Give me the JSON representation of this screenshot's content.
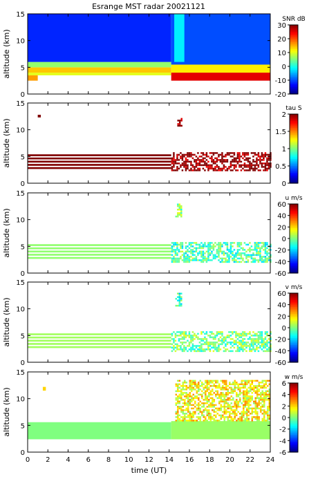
{
  "figure": {
    "title": "Esrange MST radar 20021121"
  },
  "chart_data": [
    {
      "type": "heatmap",
      "id": "snr",
      "ylabel": "altitude (km)",
      "ylim": [
        0,
        15
      ],
      "yticks": [
        0,
        5,
        10,
        15
      ],
      "xlim": [
        0,
        24
      ],
      "xticks": [
        0,
        2,
        4,
        6,
        8,
        10,
        12,
        14,
        16,
        18,
        20,
        22,
        24
      ],
      "show_xtick_labels": false,
      "colorbar": {
        "label": "SNR dB",
        "range": [
          -20,
          30
        ],
        "ticks": [
          -20,
          -10,
          0,
          10,
          20,
          30
        ]
      },
      "fields": [
        {
          "t": [
            0,
            1
          ],
          "alt": [
            2.5,
            3.5
          ],
          "value": 16
        },
        {
          "t": [
            0,
            14.2
          ],
          "alt": [
            3.5,
            4.0
          ],
          "value": 10
        },
        {
          "t": [
            0,
            14.2
          ],
          "alt": [
            4.0,
            5.0
          ],
          "value": 14
        },
        {
          "t": [
            0,
            14.2
          ],
          "alt": [
            5.0,
            6.0
          ],
          "value": 6
        },
        {
          "t": [
            0,
            14.2
          ],
          "alt": [
            6.0,
            15
          ],
          "value": -12
        },
        {
          "t": [
            14.2,
            24
          ],
          "alt": [
            2.5,
            4.0
          ],
          "value": 25
        },
        {
          "t": [
            14.2,
            24
          ],
          "alt": [
            4.0,
            5.5
          ],
          "value": 12
        },
        {
          "t": [
            14.2,
            24
          ],
          "alt": [
            5.5,
            15
          ],
          "value": -10
        },
        {
          "t": [
            14.5,
            15.5
          ],
          "alt": [
            6.0,
            15
          ],
          "value": -2
        }
      ]
    },
    {
      "type": "heatmap",
      "id": "tau",
      "ylabel": "altitude (km)",
      "ylim": [
        0,
        15
      ],
      "yticks": [
        0,
        5,
        10,
        15
      ],
      "xlim": [
        0,
        24
      ],
      "xticks": [
        0,
        2,
        4,
        6,
        8,
        10,
        12,
        14,
        16,
        18,
        20,
        22,
        24
      ],
      "show_xtick_labels": false,
      "colorbar": {
        "label": "tau S",
        "range": [
          0,
          2
        ],
        "ticks": [
          0,
          0.5,
          1,
          1.5,
          2
        ]
      },
      "fields": [
        {
          "t": [
            0,
            14.2
          ],
          "alt": [
            2.4,
            5.4
          ],
          "value": 2,
          "striped": true
        },
        {
          "t": [
            14.2,
            24
          ],
          "alt": [
            2.4,
            5.8
          ],
          "value": 2,
          "sparse": true
        },
        {
          "t": [
            1.0,
            1.3
          ],
          "alt": [
            12.3,
            12.8
          ],
          "value": 2
        },
        {
          "t": [
            14.8,
            15.3
          ],
          "alt": [
            10.8,
            12.2
          ],
          "value": 2,
          "sparse": true
        }
      ]
    },
    {
      "type": "heatmap",
      "id": "u",
      "ylabel": "altitude (km)",
      "ylim": [
        0,
        15
      ],
      "yticks": [
        0,
        5,
        10,
        15
      ],
      "xlim": [
        0,
        24
      ],
      "xticks": [
        0,
        2,
        4,
        6,
        8,
        10,
        12,
        14,
        16,
        18,
        20,
        22,
        24
      ],
      "show_xtick_labels": false,
      "colorbar": {
        "label": "u m/s",
        "range": [
          -60,
          60
        ],
        "ticks": [
          -60,
          -40,
          -20,
          0,
          20,
          40,
          60
        ]
      },
      "fields": [
        {
          "t": [
            0,
            14.2
          ],
          "alt": [
            2.4,
            5.4
          ],
          "value": 2,
          "striped": true
        },
        {
          "t": [
            14.2,
            24
          ],
          "alt": [
            2.2,
            5.8
          ],
          "value": -6,
          "sparse": true
        },
        {
          "t": [
            14.6,
            15.2
          ],
          "alt": [
            10.5,
            13.0
          ],
          "value": 0,
          "sparse": true
        }
      ]
    },
    {
      "type": "heatmap",
      "id": "v",
      "ylabel": "altitude (km)",
      "ylim": [
        0,
        15
      ],
      "yticks": [
        0,
        5,
        10,
        15
      ],
      "xlim": [
        0,
        24
      ],
      "xticks": [
        0,
        2,
        4,
        6,
        8,
        10,
        12,
        14,
        16,
        18,
        20,
        22,
        24
      ],
      "show_xtick_labels": false,
      "colorbar": {
        "label": "v m/s",
        "range": [
          -60,
          60
        ],
        "ticks": [
          -60,
          -40,
          -20,
          0,
          20,
          40,
          60
        ]
      },
      "fields": [
        {
          "t": [
            0,
            14.2
          ],
          "alt": [
            2.4,
            5.4
          ],
          "value": 4,
          "striped": true
        },
        {
          "t": [
            14.2,
            24
          ],
          "alt": [
            2.2,
            5.8
          ],
          "value": -2,
          "sparse": true
        },
        {
          "t": [
            14.6,
            15.2
          ],
          "alt": [
            10.5,
            13.0
          ],
          "value": -10,
          "sparse": true
        }
      ]
    },
    {
      "type": "heatmap",
      "id": "w",
      "ylabel": "altitude (km)",
      "xlabel": "time (UT)",
      "ylim": [
        0,
        15
      ],
      "yticks": [
        0,
        5,
        10,
        15
      ],
      "xlim": [
        0,
        24
      ],
      "xticks": [
        0,
        2,
        4,
        6,
        8,
        10,
        12,
        14,
        16,
        18,
        20,
        22,
        24
      ],
      "show_xtick_labels": true,
      "colorbar": {
        "label": "w m/s",
        "range": [
          -6,
          6
        ],
        "ticks": [
          -6,
          -4,
          -2,
          0,
          2,
          4,
          6
        ]
      },
      "fields": [
        {
          "t": [
            0,
            14.2
          ],
          "alt": [
            2.4,
            5.6
          ],
          "value": 0
        },
        {
          "t": [
            14.2,
            24
          ],
          "alt": [
            2.4,
            5.8
          ],
          "value": 0.3
        },
        {
          "t": [
            14.6,
            24
          ],
          "alt": [
            6.0,
            13.5
          ],
          "value": 1.5,
          "sparse": true
        },
        {
          "t": [
            1.5,
            1.8
          ],
          "alt": [
            11.5,
            12.2
          ],
          "value": 2
        }
      ]
    }
  ]
}
